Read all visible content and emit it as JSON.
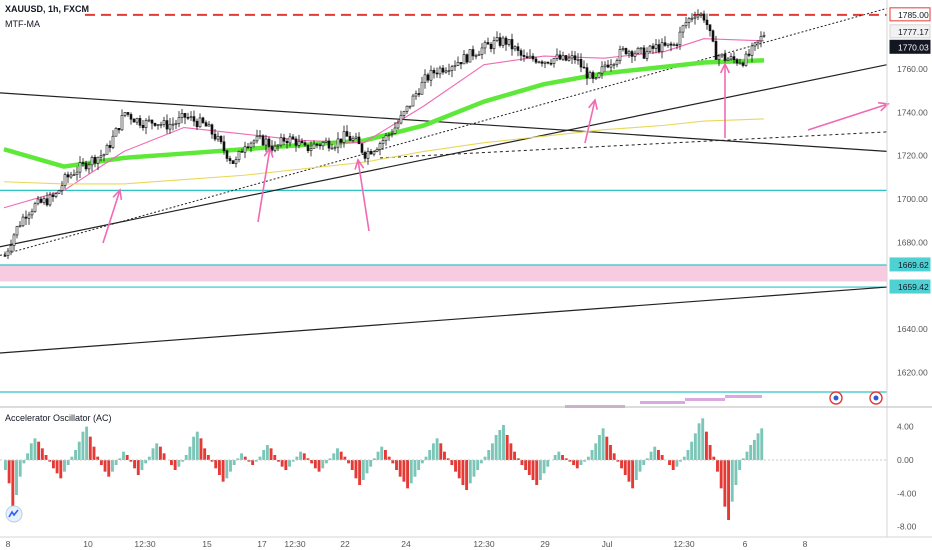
{
  "header": {
    "title": "XAUUSD, 1h, FXCM",
    "indicator": "MTF-MA",
    "oscillator": "Accelerator Oscillator (AC)"
  },
  "colors": {
    "up_candle": "#26a69a",
    "down_candle": "#ef5350",
    "ma_green": "#5ee83a",
    "ma_pink": "#f06ab3",
    "ma_yellow": "#e8d85a",
    "arrow": "#f06ab3",
    "support": "#2ec4c4",
    "resistance": "#e53935",
    "zone": "#f8cce0",
    "ac_pos": "#7cc6b8",
    "ac_neg": "#e53935"
  },
  "price_labels": [
    {
      "text": "1785.00",
      "style": "red"
    },
    {
      "text": "1777.17",
      "style": "light"
    },
    {
      "text": "1770.03",
      "style": "dark"
    },
    {
      "text": "1669.62",
      "style": "cyan"
    },
    {
      "text": "1659.42",
      "style": "cyan"
    }
  ],
  "chart_data": [
    {
      "type": "line",
      "title": "XAUUSD, 1h, FXCM",
      "y_axis": {
        "ticks": [
          "1760.00",
          "1740.00",
          "1720.00",
          "1700.00",
          "1680.00",
          "1640.00",
          "1620.00"
        ],
        "range": [
          1605,
          1790
        ],
        "side": "right"
      },
      "x_axis": {
        "ticks": [
          "8",
          "10",
          "12:30",
          "15",
          "17",
          "12:30",
          "22",
          "24",
          "12:30",
          "29",
          "Jul",
          "12:30",
          "6",
          "8"
        ]
      },
      "series": [
        {
          "name": "XAUUSD",
          "x": [
            0,
            10,
            20,
            30,
            40,
            50,
            60,
            70,
            80,
            90,
            100,
            110,
            120,
            130,
            140,
            150,
            160,
            170,
            180,
            190,
            200,
            210,
            220,
            230,
            240,
            250,
            260,
            270,
            280,
            290,
            300,
            310,
            320,
            330,
            340,
            350,
            360,
            370,
            380,
            390,
            400,
            410,
            420,
            430,
            440,
            450,
            460,
            470,
            480,
            490,
            500,
            510,
            520,
            530,
            540,
            550,
            560,
            570,
            580,
            590,
            600,
            610,
            620,
            630,
            640,
            650,
            660,
            670,
            680,
            690,
            700,
            710,
            720,
            730,
            740,
            750,
            760
          ],
          "values": [
            1674,
            1685,
            1693,
            1697,
            1699,
            1701,
            1709,
            1713,
            1716,
            1719,
            1721,
            1730,
            1740,
            1737,
            1735,
            1736,
            1734,
            1735,
            1738,
            1736,
            1734,
            1729,
            1722,
            1716,
            1726,
            1727,
            1727,
            1723,
            1728,
            1727,
            1723,
            1725,
            1726,
            1726,
            1729,
            1727,
            1721,
            1724,
            1728,
            1733,
            1740,
            1748,
            1755,
            1759,
            1761,
            1763,
            1765,
            1768,
            1770,
            1772,
            1773,
            1769,
            1764,
            1765,
            1764,
            1765,
            1764,
            1765,
            1759,
            1753,
            1762,
            1765,
            1769,
            1768,
            1767,
            1770,
            1770,
            1771,
            1781,
            1786,
            1784,
            1767,
            1765,
            1764,
            1764,
            1770,
            1777
          ]
        }
      ],
      "moving_averages": [
        {
          "color": "green",
          "x": [
            0,
            60,
            120,
            180,
            240,
            300,
            360,
            420,
            480,
            540,
            600,
            660,
            700,
            760
          ],
          "values": [
            1723,
            1715,
            1719,
            1721,
            1723,
            1725,
            1727,
            1734,
            1745,
            1753,
            1758,
            1761,
            1763,
            1764
          ]
        },
        {
          "color": "pink",
          "x": [
            0,
            60,
            120,
            180,
            240,
            300,
            360,
            420,
            480,
            540,
            600,
            660,
            700,
            760
          ],
          "values": [
            1696,
            1704,
            1722,
            1733,
            1730,
            1727,
            1726,
            1743,
            1762,
            1766,
            1765,
            1768,
            1774,
            1773
          ]
        },
        {
          "color": "yellow",
          "x": [
            0,
            60,
            120,
            180,
            240,
            300,
            360,
            420,
            480,
            540,
            600,
            660,
            700,
            760
          ],
          "values": [
            1708,
            1707,
            1707,
            1709,
            1711,
            1714,
            1717,
            1722,
            1726,
            1729,
            1732,
            1734,
            1736,
            1737
          ]
        }
      ]
    },
    {
      "type": "bar",
      "title": "Accelerator Oscillator (AC)",
      "y_axis": {
        "ticks": [
          "4.00",
          "0.00",
          "-4.00",
          "-8.00"
        ],
        "range": [
          -9,
          6
        ]
      },
      "values": [
        -1.2,
        -2.8,
        -6.0,
        -4.2,
        -2.0,
        -0.4,
        0.8,
        2.0,
        2.6,
        2.2,
        1.4,
        0.6,
        -0.2,
        -1.0,
        -1.6,
        -2.2,
        -1.4,
        -0.6,
        0.4,
        1.2,
        2.2,
        3.4,
        4.0,
        2.8,
        1.6,
        0.4,
        -0.6,
        -1.4,
        -2.0,
        -1.4,
        -0.6,
        0.2,
        1.0,
        0.6,
        -0.2,
        -1.0,
        -1.8,
        -1.2,
        -0.4,
        0.4,
        1.4,
        2.0,
        1.6,
        0.8,
        0.0,
        -0.6,
        -1.2,
        -0.8,
        -0.2,
        0.6,
        1.6,
        2.8,
        3.4,
        2.6,
        1.4,
        0.6,
        -0.2,
        -1.0,
        -1.8,
        -2.6,
        -2.2,
        -1.4,
        -0.6,
        0.2,
        0.8,
        0.4,
        -0.2,
        -0.6,
        -0.2,
        0.4,
        1.2,
        1.8,
        1.4,
        0.6,
        -0.2,
        -0.8,
        -1.2,
        -0.8,
        -0.2,
        0.4,
        1.0,
        0.8,
        0.2,
        -0.4,
        -1.0,
        -1.4,
        -1.0,
        -0.4,
        0.2,
        0.8,
        1.4,
        1.0,
        0.4,
        -0.4,
        -1.2,
        -2.2,
        -3.0,
        -2.4,
        -1.6,
        -0.8,
        0.2,
        1.0,
        1.6,
        1.2,
        0.4,
        -0.4,
        -1.2,
        -2.0,
        -2.6,
        -3.4,
        -2.8,
        -2.0,
        -1.2,
        -0.4,
        0.4,
        1.2,
        2.0,
        2.6,
        2.0,
        1.0,
        0.2,
        -0.6,
        -1.4,
        -2.2,
        -3.0,
        -3.6,
        -2.8,
        -2.0,
        -1.2,
        -0.4,
        0.4,
        1.2,
        2.0,
        3.0,
        3.6,
        4.2,
        3.0,
        2.0,
        1.0,
        0.2,
        -0.6,
        -1.2,
        -1.8,
        -2.4,
        -3.0,
        -2.4,
        -1.6,
        -0.8,
        0.0,
        0.6,
        1.0,
        0.6,
        0.2,
        -0.2,
        -0.6,
        -1.0,
        -0.6,
        -0.2,
        0.4,
        1.2,
        2.0,
        3.0,
        3.8,
        2.8,
        1.8,
        0.8,
        -0.2,
        -1.0,
        -1.8,
        -2.6,
        -3.4,
        -2.4,
        -1.4,
        -0.6,
        0.2,
        1.0,
        1.6,
        1.2,
        0.6,
        0.0,
        -0.6,
        -1.2,
        -0.8,
        -0.2,
        0.4,
        1.2,
        2.2,
        3.2,
        4.4,
        5.0,
        3.4,
        1.8,
        0.4,
        -1.4,
        -3.4,
        -5.6,
        -7.2,
        -5.0,
        -3.0,
        -1.2,
        0.2,
        1.0,
        1.8,
        2.4,
        3.2,
        3.8
      ]
    }
  ]
}
